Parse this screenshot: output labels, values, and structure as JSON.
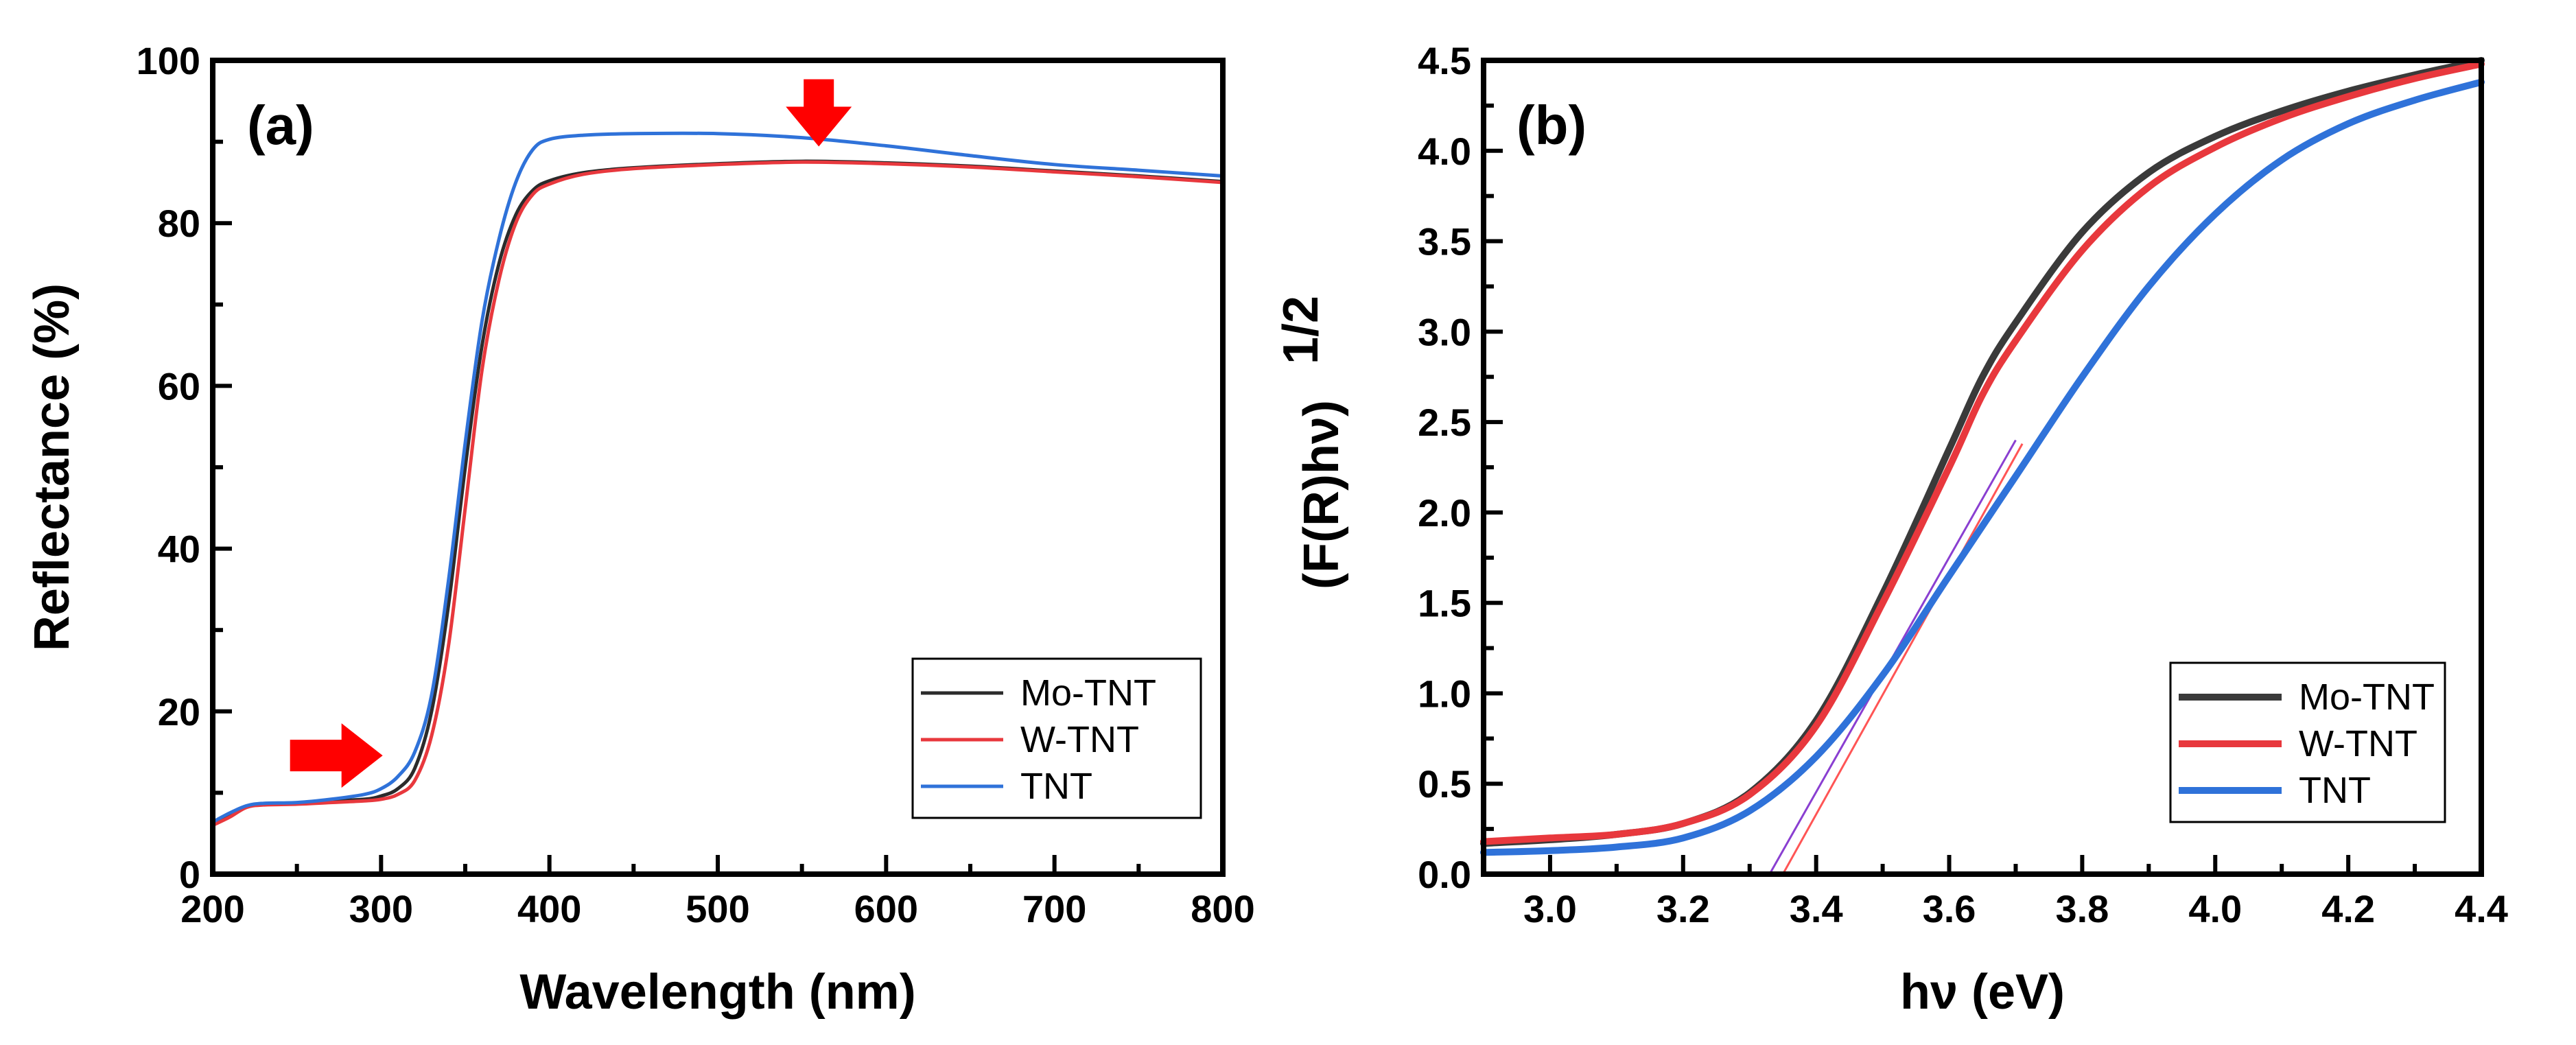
{
  "chart_data": [
    {
      "type": "line",
      "panel_label": "(a)",
      "xlabel": "Wavelength (nm)",
      "ylabel": "Reflectance (%)",
      "xlim": [
        200,
        800
      ],
      "ylim": [
        0,
        100
      ],
      "xticks": [
        200,
        300,
        400,
        500,
        600,
        700,
        800
      ],
      "yticks": [
        0,
        20,
        40,
        60,
        80,
        100
      ],
      "legend_position": "bottom-right",
      "series": [
        {
          "name": "Mo-TNT",
          "color": "#2b2b2b",
          "width": 5,
          "x": [
            200,
            210,
            220,
            230,
            250,
            270,
            290,
            300,
            310,
            320,
            330,
            340,
            350,
            360,
            370,
            380,
            390,
            400,
            420,
            450,
            500,
            550,
            600,
            650,
            700,
            750,
            800
          ],
          "y": [
            6.2,
            7.2,
            8.3,
            8.6,
            8.7,
            9.0,
            9.2,
            9.6,
            10.5,
            13,
            20,
            33,
            50,
            65,
            75,
            81,
            84,
            85.2,
            86.2,
            86.8,
            87.3,
            87.6,
            87.4,
            87.0,
            86.4,
            85.8,
            85.1
          ]
        },
        {
          "name": "W-TNT",
          "color": "#e8383d",
          "width": 5,
          "x": [
            200,
            210,
            220,
            230,
            250,
            270,
            290,
            300,
            310,
            320,
            330,
            340,
            350,
            360,
            370,
            380,
            390,
            400,
            420,
            450,
            500,
            550,
            600,
            650,
            700,
            750,
            800
          ],
          "y": [
            6.0,
            7.0,
            8.2,
            8.5,
            8.6,
            8.8,
            9.0,
            9.2,
            9.8,
            11.5,
            17,
            28,
            45,
            62,
            73,
            80,
            83.5,
            84.8,
            86,
            86.7,
            87.2,
            87.5,
            87.3,
            86.9,
            86.3,
            85.7,
            85.0
          ]
        },
        {
          "name": "TNT",
          "color": "#2f72d9",
          "width": 5,
          "x": [
            200,
            210,
            220,
            230,
            250,
            270,
            290,
            300,
            310,
            320,
            330,
            340,
            350,
            360,
            370,
            380,
            390,
            400,
            420,
            450,
            500,
            550,
            600,
            650,
            700,
            750,
            800
          ],
          "y": [
            6.4,
            7.5,
            8.4,
            8.7,
            8.8,
            9.2,
            9.8,
            10.5,
            12,
            15,
            22,
            36,
            53,
            68,
            78,
            85,
            89,
            90.3,
            90.8,
            91.0,
            91.0,
            90.5,
            89.5,
            88.3,
            87.2,
            86.5,
            85.8
          ]
        }
      ],
      "fit_lines": [],
      "annotations": [
        {
          "type": "arrow-right",
          "x": 250,
          "y": 15,
          "color": "#ff0000"
        },
        {
          "type": "arrow-down",
          "x": 560,
          "y": 96,
          "color": "#ff0000"
        }
      ]
    },
    {
      "type": "line",
      "panel_label": "(b)",
      "xlabel": "hν (eV)",
      "ylabel": "(F(R)hν)",
      "ylabel_superscript": "1/2",
      "xlim": [
        2.9,
        4.4
      ],
      "ylim": [
        0,
        4.5
      ],
      "xticks": [
        3.0,
        3.2,
        3.4,
        3.6,
        3.8,
        4.0,
        4.2,
        4.4
      ],
      "xtick_labels": [
        "3.0",
        "3.2",
        "3.4",
        "3.6",
        "3.8",
        "4.0",
        "4.2",
        "4.4"
      ],
      "yticks": [
        0,
        0.5,
        1.0,
        1.5,
        2.0,
        2.5,
        3.0,
        3.5,
        4.0,
        4.5
      ],
      "ytick_labels": [
        "0.0",
        "0.5",
        "1.0",
        "1.5",
        "2.0",
        "2.5",
        "3.0",
        "3.5",
        "4.0",
        "4.5"
      ],
      "legend_position": "bottom-right",
      "series": [
        {
          "name": "Mo-TNT",
          "color": "#3a3a3a",
          "width": 10,
          "x": [
            2.9,
            3.0,
            3.1,
            3.2,
            3.3,
            3.4,
            3.5,
            3.6,
            3.65,
            3.7,
            3.8,
            3.9,
            4.0,
            4.1,
            4.2,
            4.3,
            4.4
          ],
          "y": [
            0.17,
            0.19,
            0.22,
            0.28,
            0.45,
            0.85,
            1.55,
            2.35,
            2.75,
            3.05,
            3.55,
            3.88,
            4.08,
            4.22,
            4.33,
            4.42,
            4.5
          ]
        },
        {
          "name": "W-TNT",
          "color": "#e8383d",
          "width": 10,
          "x": [
            2.9,
            3.0,
            3.1,
            3.2,
            3.3,
            3.4,
            3.5,
            3.6,
            3.65,
            3.7,
            3.8,
            3.9,
            4.0,
            4.1,
            4.2,
            4.3,
            4.4
          ],
          "y": [
            0.18,
            0.2,
            0.22,
            0.28,
            0.44,
            0.82,
            1.5,
            2.25,
            2.65,
            2.95,
            3.45,
            3.8,
            4.02,
            4.18,
            4.3,
            4.4,
            4.48
          ]
        },
        {
          "name": "TNT",
          "color": "#2f72d9",
          "width": 10,
          "x": [
            2.9,
            3.0,
            3.1,
            3.2,
            3.3,
            3.4,
            3.5,
            3.6,
            3.7,
            3.8,
            3.9,
            4.0,
            4.1,
            4.2,
            4.3,
            4.4
          ],
          "y": [
            0.12,
            0.13,
            0.15,
            0.2,
            0.35,
            0.65,
            1.1,
            1.65,
            2.2,
            2.75,
            3.25,
            3.65,
            3.95,
            4.15,
            4.28,
            4.38
          ]
        }
      ],
      "fit_lines": [
        {
          "color": "#8a3fd1",
          "x": [
            3.33,
            3.7
          ],
          "y": [
            0.0,
            2.4
          ]
        },
        {
          "color": "#ff5555",
          "x": [
            3.35,
            3.71
          ],
          "y": [
            0.0,
            2.38
          ]
        }
      ],
      "annotations": []
    }
  ]
}
